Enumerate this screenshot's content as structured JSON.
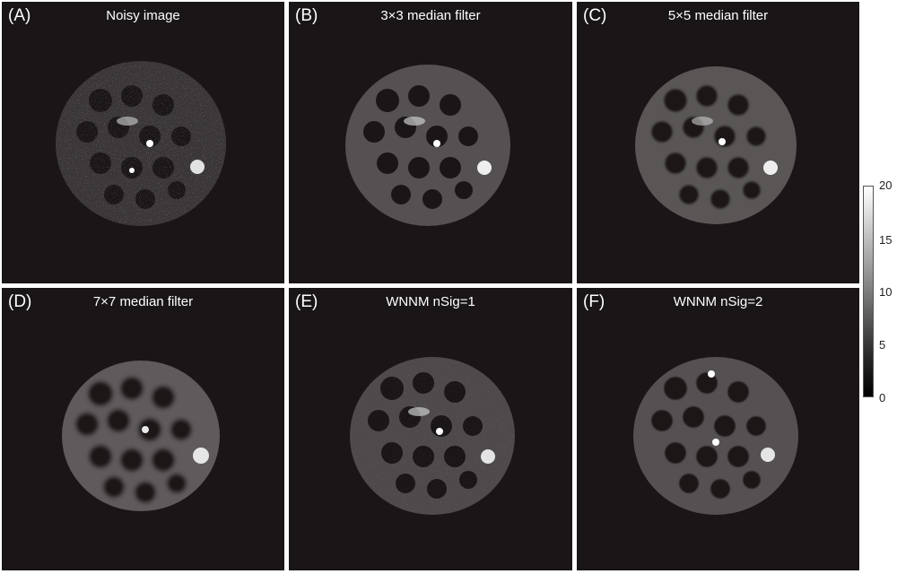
{
  "panels": [
    {
      "letter": "(A)",
      "title": "Noisy image"
    },
    {
      "letter": "(B)",
      "title": "3×3 median filter"
    },
    {
      "letter": "(C)",
      "title": "5×5 median filter"
    },
    {
      "letter": "(D)",
      "title": "7×7 median filter"
    },
    {
      "letter": "(E)",
      "title": "WNNM nSig=1"
    },
    {
      "letter": "(F)",
      "title": "WNNM nSig=2"
    }
  ],
  "colorbar": {
    "ticks": [
      "20",
      "15",
      "10",
      "5",
      "0"
    ],
    "max": 20,
    "min": 0
  }
}
